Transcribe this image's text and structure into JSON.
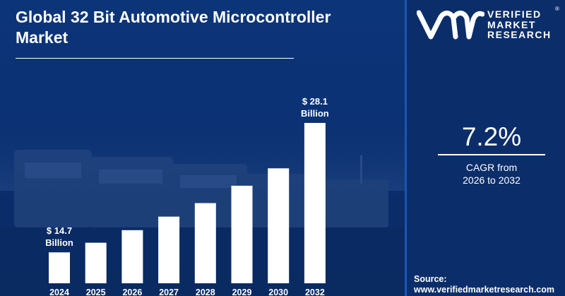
{
  "page": {
    "title": "Global 32 Bit Automotive Microcontroller Market"
  },
  "brand": {
    "name_line1": "VERIFIED",
    "name_line2": "MARKET",
    "name_line3": "RESEARCH",
    "registered": "®",
    "logo_icon": "vmr-logo-icon"
  },
  "cagr": {
    "value": "7.2%",
    "label_line1": "CAGR from",
    "label_line2": "2026 to 2032"
  },
  "source": {
    "label": "Source:",
    "url": "www.verifiedmarketresearch.com"
  },
  "colors": {
    "background": "#0b2f6c",
    "bars": "#ffffff",
    "text": "#ffffff"
  },
  "chart_data": {
    "type": "bar",
    "title": "Global 32 Bit Automotive Microcontroller Market",
    "xlabel": "",
    "ylabel": "",
    "unit": "$ Billion",
    "categories": [
      "2024",
      "2025",
      "2026",
      "2027",
      "2028",
      "2029",
      "2030",
      "2032"
    ],
    "values": [
      14.7,
      15.7,
      17.0,
      18.4,
      19.8,
      21.6,
      23.4,
      28.1
    ],
    "ylim": [
      11.5,
      28.1
    ],
    "value_labels": [
      {
        "index": 0,
        "line1": "$ 14.7",
        "line2": "Billion"
      },
      {
        "index": 7,
        "line1": "$ 28.1",
        "line2": "Billion"
      }
    ],
    "grid": false,
    "legend": "none"
  }
}
